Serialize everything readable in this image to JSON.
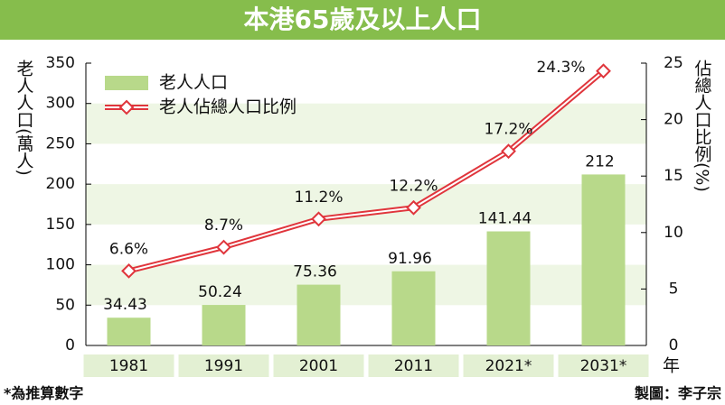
{
  "chart_data": {
    "type": "combo",
    "title": "本港65歲及以上人口",
    "y_label": "老人人口(萬人)",
    "y2_label": "佔總人口比例(%)",
    "x_unit": "年",
    "note": "*為推算數字",
    "credit": "製圖：李子宗",
    "categories": [
      "1981",
      "1991",
      "2001",
      "2011",
      "2021*",
      "2031*"
    ],
    "series": [
      {
        "name": "老人人口",
        "type": "bar",
        "color": "#b8d98a",
        "values": [
          34.43,
          50.24,
          75.36,
          91.96,
          141.44,
          212
        ]
      },
      {
        "name": "老人佔總人口比例",
        "type": "line",
        "axis": "y2",
        "color": "#e0353c",
        "values": [
          6.6,
          8.7,
          11.2,
          12.2,
          17.2,
          24.3
        ],
        "value_labels": [
          "6.6%",
          "8.7%",
          "11.2%",
          "12.2%",
          "17.2%",
          "24.3%"
        ]
      }
    ],
    "ylim": [
      0,
      350
    ],
    "yticks": [
      0,
      50,
      100,
      150,
      200,
      250,
      300,
      350
    ],
    "y2lim": [
      0,
      25
    ],
    "y2ticks": [
      0,
      5,
      10,
      15,
      20,
      25
    ],
    "legend": "upper left"
  }
}
